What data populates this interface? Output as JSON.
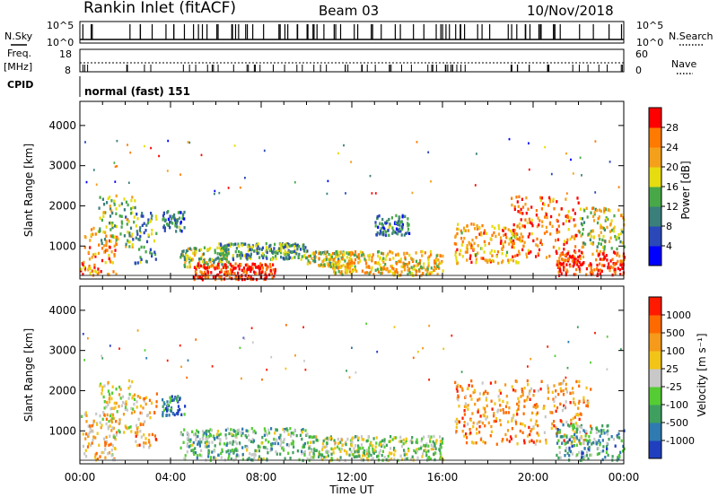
{
  "header": {
    "title": "Rankin Inlet (fitACF)",
    "beam": "Beam 03",
    "date": "10/Nov/2018"
  },
  "top_panels": {
    "nsky_label": "N.Sky",
    "nsearch_label": "N.Search",
    "noise_ticks": [
      "10^5",
      "10^0"
    ],
    "freq_label_line1": "Freq.",
    "freq_label_line2": "[MHz]",
    "freq_ticks": [
      "18",
      "8"
    ],
    "nave_label": "Nave",
    "nave_ticks": [
      "60",
      "0"
    ],
    "cpid_label": "CPID",
    "cpid_text": "normal (fast) 151"
  },
  "chart_data": [
    {
      "type": "heatmap",
      "name": "power-panel",
      "ylabel": "Slant Range [km]",
      "xlabel": "",
      "y_ticks": [
        "1000",
        "2000",
        "3000",
        "4000"
      ],
      "ylim": [
        180,
        4600
      ],
      "colorbar": {
        "label": "Power [dB]",
        "ticks": [
          "4",
          "8",
          "12",
          "16",
          "20",
          "24",
          "28"
        ],
        "range": [
          0,
          32
        ],
        "colors": [
          "#0000ff",
          "#2a48b8",
          "#3a7f7a",
          "#48a848",
          "#e6dc10",
          "#f5a01a",
          "#ff7a00",
          "#ff0000"
        ]
      },
      "regions": [
        {
          "t": [
            0.0,
            1.6
          ],
          "r": [
            300,
            1500
          ],
          "c": 0.75
        },
        {
          "t": [
            0.8,
            2.4
          ],
          "r": [
            1000,
            2300
          ],
          "c": 0.45
        },
        {
          "t": [
            2.4,
            3.4
          ],
          "r": [
            600,
            2000
          ],
          "c": 0.35
        },
        {
          "t": [
            3.6,
            4.6
          ],
          "r": [
            1400,
            1900
          ],
          "c": 0.3
        },
        {
          "t": [
            4.4,
            6.6
          ],
          "r": [
            500,
            1000
          ],
          "c": 0.5
        },
        {
          "t": [
            5.0,
            8.6
          ],
          "r": [
            200,
            600
          ],
          "c": 0.95
        },
        {
          "t": [
            6.0,
            10.0
          ],
          "r": [
            700,
            1100
          ],
          "c": 0.4
        },
        {
          "t": [
            10.0,
            12.0
          ],
          "r": [
            500,
            900
          ],
          "c": 0.55
        },
        {
          "t": [
            11.0,
            16.0
          ],
          "r": [
            300,
            900
          ],
          "c": 0.65
        },
        {
          "t": [
            13.0,
            14.5
          ],
          "r": [
            1300,
            1800
          ],
          "c": 0.3
        },
        {
          "t": [
            16.5,
            19.5
          ],
          "r": [
            600,
            1600
          ],
          "c": 0.7
        },
        {
          "t": [
            19.0,
            22.0
          ],
          "r": [
            700,
            2300
          ],
          "c": 0.8
        },
        {
          "t": [
            21.0,
            24.0
          ],
          "r": [
            300,
            900
          ],
          "c": 0.92
        },
        {
          "t": [
            22.0,
            24.0
          ],
          "r": [
            900,
            2000
          ],
          "c": 0.55
        }
      ]
    },
    {
      "type": "heatmap",
      "name": "velocity-panel",
      "ylabel": "Slant Range [km]",
      "xlabel": "Time UT",
      "x_ticks": [
        "00:00",
        "04:00",
        "08:00",
        "12:00",
        "16:00",
        "20:00",
        "00:00"
      ],
      "xlim": [
        0,
        24
      ],
      "y_ticks": [
        "1000",
        "2000",
        "3000",
        "4000"
      ],
      "ylim": [
        180,
        4600
      ],
      "colorbar": {
        "label": "Velocity [m s⁻¹]",
        "ticks": [
          "1000",
          "500",
          "100",
          "25",
          "-25",
          "-100",
          "-500",
          "-1000"
        ],
        "colors": [
          "#1f3fbf",
          "#2f7ab0",
          "#3f9f5f",
          "#55cc33",
          "#c8c8c8",
          "#f2c418",
          "#f59a1a",
          "#ff6a00",
          "#ff1a00"
        ]
      },
      "regions": [
        {
          "t": [
            0.0,
            1.6
          ],
          "r": [
            300,
            1500
          ],
          "c": 0.65
        },
        {
          "t": [
            0.8,
            2.4
          ],
          "r": [
            1000,
            2300
          ],
          "c": 0.55
        },
        {
          "t": [
            2.4,
            3.4
          ],
          "r": [
            600,
            2000
          ],
          "c": 0.7
        },
        {
          "t": [
            3.6,
            4.6
          ],
          "r": [
            1400,
            1900
          ],
          "c": 0.2
        },
        {
          "t": [
            4.4,
            10.0
          ],
          "r": [
            300,
            1100
          ],
          "c": 0.35
        },
        {
          "t": [
            10.0,
            16.0
          ],
          "r": [
            300,
            900
          ],
          "c": 0.45
        },
        {
          "t": [
            16.5,
            22.5
          ],
          "r": [
            700,
            2300
          ],
          "c": 0.72
        },
        {
          "t": [
            21.0,
            24.0
          ],
          "r": [
            300,
            1200
          ],
          "c": 0.3
        }
      ]
    }
  ]
}
